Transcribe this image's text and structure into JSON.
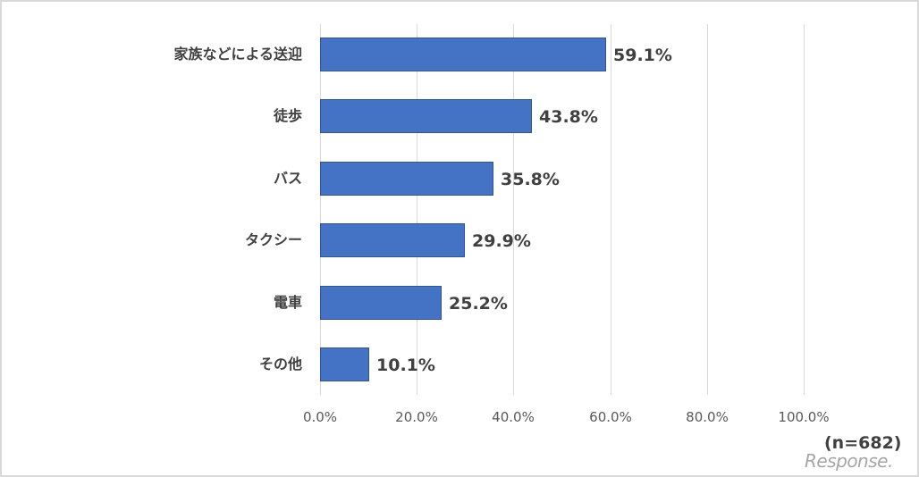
{
  "chart_data": {
    "type": "bar",
    "orientation": "horizontal",
    "title": "",
    "xlabel": "",
    "ylabel": "",
    "categories": [
      "家族などによる送迎",
      "徒歩",
      "バス",
      "タクシー",
      "電車",
      "その他"
    ],
    "values": [
      59.1,
      43.8,
      35.8,
      29.9,
      25.2,
      10.1
    ],
    "value_labels": [
      "59.1%",
      "43.8%",
      "35.8%",
      "29.9%",
      "25.2%",
      "10.1%"
    ],
    "xlim": [
      0,
      100
    ],
    "xticks": [
      "0.0%",
      "20.0%",
      "40.0%",
      "60.0%",
      "80.0%",
      "100.0%"
    ],
    "grid": true,
    "legend": null,
    "bar_color": "#4472c4",
    "sample_note": "(n=682)"
  },
  "watermark": "Response."
}
